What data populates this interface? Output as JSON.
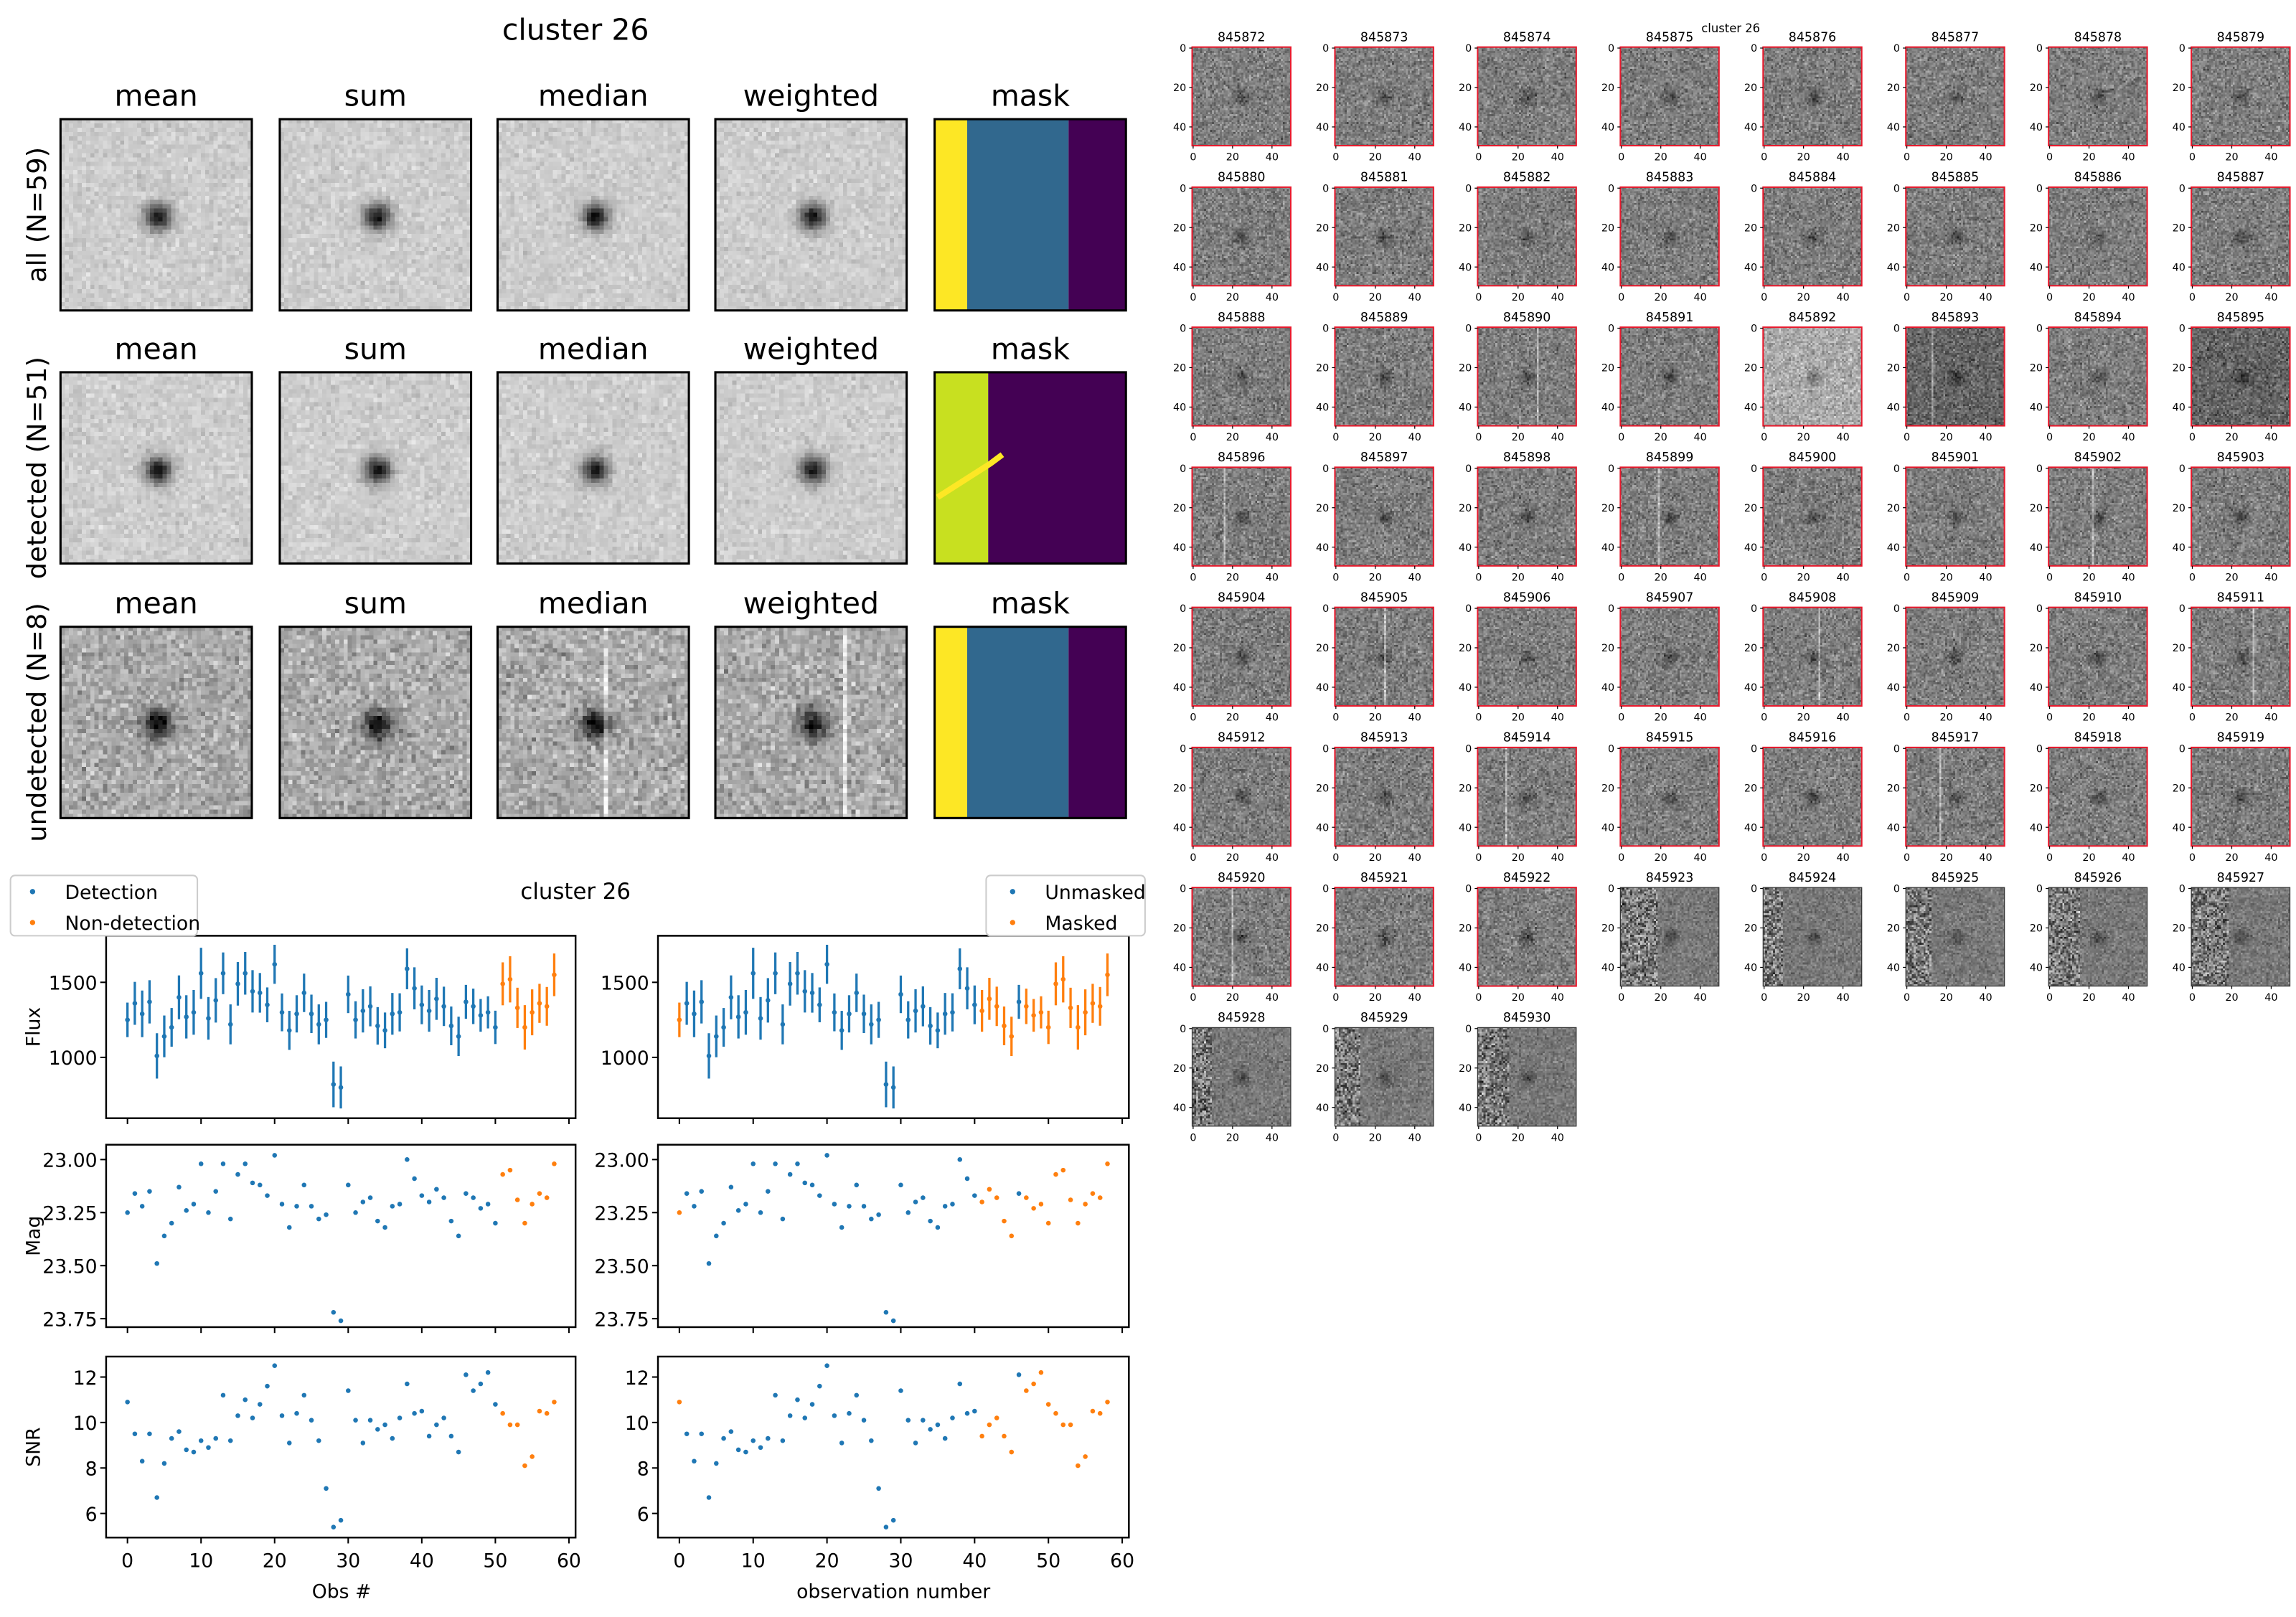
{
  "top_left": {
    "title": "cluster 26",
    "columns": [
      "mean",
      "sum",
      "median",
      "weighted",
      "mask"
    ],
    "rows": [
      "all (N=59)",
      "detected (N=51)",
      "undetected (N=8)"
    ]
  },
  "lightcurves": {
    "title": "cluster 26",
    "left_legend": [
      "Detection",
      "Non-detection"
    ],
    "right_legend": [
      "Unmasked",
      "Masked"
    ],
    "left_xlabel": "Obs #",
    "right_xlabel": "observation number",
    "ylabels": [
      "Flux",
      "Mag",
      "SNR"
    ],
    "colors": {
      "blue": "#1f77b4",
      "orange": "#ff7f0e"
    }
  },
  "chart_data": {
    "type": "scatter",
    "title": "cluster 26",
    "xlim": [
      -2.9,
      60.9
    ],
    "xticks": [
      0,
      10,
      20,
      30,
      40,
      50,
      60
    ],
    "x": [
      0,
      1,
      2,
      3,
      4,
      5,
      6,
      7,
      8,
      9,
      10,
      11,
      12,
      13,
      14,
      15,
      16,
      17,
      18,
      19,
      20,
      21,
      22,
      23,
      24,
      25,
      26,
      27,
      28,
      29,
      30,
      31,
      32,
      33,
      34,
      35,
      36,
      37,
      38,
      39,
      40,
      41,
      42,
      43,
      44,
      45,
      46,
      47,
      48,
      49,
      50,
      51,
      52,
      53,
      54,
      55,
      56,
      57,
      58
    ],
    "flux": [
      1250,
      1360,
      1290,
      1370,
      1010,
      1140,
      1200,
      1400,
      1270,
      1300,
      1560,
      1260,
      1380,
      1560,
      1220,
      1490,
      1560,
      1440,
      1430,
      1350,
      1620,
      1300,
      1180,
      1290,
      1430,
      1290,
      1220,
      1250,
      820,
      800,
      1420,
      1250,
      1310,
      1340,
      1210,
      1180,
      1290,
      1300,
      1590,
      1460,
      1350,
      1310,
      1390,
      1340,
      1210,
      1140,
      1370,
      1340,
      1280,
      1300,
      1200,
      1490,
      1520,
      1330,
      1200,
      1300,
      1360,
      1340,
      1550
    ],
    "flux_err": [
      115,
      143,
      155,
      144,
      151,
      139,
      129,
      146,
      144,
      149,
      170,
      142,
      148,
      139,
      133,
      145,
      142,
      141,
      132,
      116,
      130,
      126,
      130,
      124,
      128,
      128,
      133,
      120,
      152,
      140,
      125,
      124,
      144,
      133,
      125,
      119,
      139,
      127,
      136,
      140,
      129,
      139,
      140,
      131,
      129,
      131,
      113,
      118,
      109,
      107,
      111,
      143,
      154,
      134,
      148,
      153,
      130,
      129,
      142
    ],
    "mag": [
      23.25,
      23.16,
      23.22,
      23.15,
      23.49,
      23.36,
      23.3,
      23.13,
      23.24,
      23.21,
      23.02,
      23.25,
      23.15,
      23.02,
      23.28,
      23.07,
      23.02,
      23.11,
      23.12,
      23.17,
      22.98,
      23.21,
      23.32,
      23.22,
      23.12,
      23.22,
      23.28,
      23.26,
      23.72,
      23.76,
      23.12,
      23.25,
      23.2,
      23.18,
      23.29,
      23.32,
      23.22,
      23.21,
      23.0,
      23.09,
      23.17,
      23.2,
      23.14,
      23.18,
      23.29,
      23.36,
      23.16,
      23.18,
      23.23,
      23.21,
      23.3,
      23.07,
      23.05,
      23.19,
      23.3,
      23.21,
      23.16,
      23.18,
      23.02
    ],
    "snr": [
      10.9,
      9.5,
      8.3,
      9.5,
      6.7,
      8.2,
      9.3,
      9.6,
      8.8,
      8.7,
      9.2,
      8.9,
      9.3,
      11.2,
      9.2,
      10.3,
      11.0,
      10.2,
      10.8,
      11.6,
      12.5,
      10.3,
      9.1,
      10.4,
      11.2,
      10.1,
      9.2,
      7.1,
      5.4,
      5.7,
      11.4,
      10.1,
      9.1,
      10.1,
      9.7,
      9.9,
      9.3,
      10.2,
      11.7,
      10.4,
      10.5,
      9.4,
      9.9,
      10.2,
      9.4,
      8.7,
      12.1,
      11.4,
      11.7,
      12.2,
      10.8,
      10.4,
      9.9,
      9.9,
      8.1,
      8.5,
      10.5,
      10.4,
      10.9
    ],
    "detected_count": 51,
    "masked_indices": [
      0,
      41,
      42,
      43,
      44,
      45,
      47,
      48,
      49,
      50,
      51,
      52,
      53,
      54,
      55,
      56,
      57,
      58
    ],
    "panels": [
      {
        "ylabel": "Flux",
        "ylim": [
          595,
          1810
        ],
        "yticks": [
          1000,
          1500
        ],
        "tick_labels": [
          "1000",
          "1500"
        ]
      },
      {
        "ylabel": "Mag",
        "ylim": [
          23.79,
          22.93
        ],
        "yticks": [
          23.0,
          23.25,
          23.5,
          23.75
        ],
        "tick_labels": [
          "23.00",
          "23.25",
          "23.50",
          "23.75"
        ]
      },
      {
        "ylabel": "SNR",
        "ylim": [
          4.94,
          12.9
        ],
        "yticks": [
          6,
          8,
          10,
          12
        ],
        "tick_labels": [
          "6",
          "8",
          "10",
          "12"
        ]
      }
    ],
    "xtick_labels": [
      "0",
      "10",
      "20",
      "30",
      "40",
      "50",
      "60"
    ]
  },
  "stamps": {
    "title": "cluster 26",
    "first_id": 845872,
    "count": 59,
    "tick_labels": [
      "0",
      "20",
      "40"
    ],
    "border_color": "#e8192c"
  },
  "mask_colors": {
    "yellow": "#fde725",
    "lime": "#c8e020",
    "blue": "#31688e",
    "purple": "#440154"
  }
}
